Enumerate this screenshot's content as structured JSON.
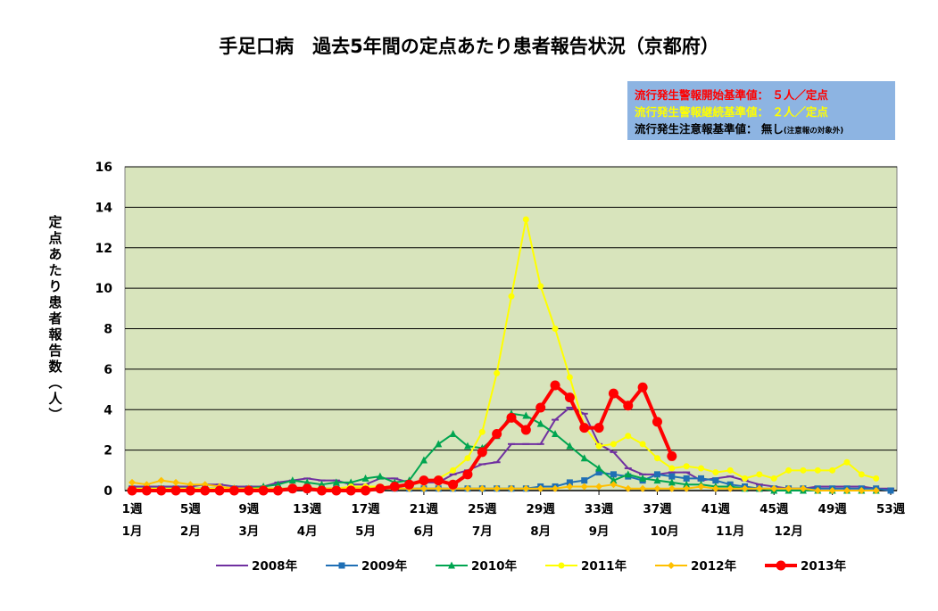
{
  "chart_data": {
    "type": "line",
    "title": "手足口病　過去5年間の定点あたり患者報告状況（京都府）",
    "ylabel": "定点あたり患者報告数（人）",
    "xlabel": "",
    "ylim": [
      0,
      16
    ],
    "yticks": [
      "0",
      "2",
      "4",
      "6",
      "8",
      "10",
      "12",
      "14",
      "16"
    ],
    "xlim": [
      1,
      53
    ],
    "week_ticks": [
      {
        "week": 1,
        "label": "1週"
      },
      {
        "week": 5,
        "label": "5週"
      },
      {
        "week": 9,
        "label": "9週"
      },
      {
        "week": 13,
        "label": "13週"
      },
      {
        "week": 17,
        "label": "17週"
      },
      {
        "week": 21,
        "label": "21週"
      },
      {
        "week": 25,
        "label": "25週"
      },
      {
        "week": 29,
        "label": "29週"
      },
      {
        "week": 33,
        "label": "33週"
      },
      {
        "week": 37,
        "label": "37週"
      },
      {
        "week": 41,
        "label": "41週"
      },
      {
        "week": 45,
        "label": "45週"
      },
      {
        "week": 49,
        "label": "49週"
      },
      {
        "week": 53,
        "label": "53週"
      }
    ],
    "month_ticks": [
      {
        "week": 1,
        "label": "1月"
      },
      {
        "week": 5,
        "label": "2月"
      },
      {
        "week": 9,
        "label": "3月"
      },
      {
        "week": 13,
        "label": "4月"
      },
      {
        "week": 17,
        "label": "5月"
      },
      {
        "week": 21,
        "label": "6月"
      },
      {
        "week": 25,
        "label": "7月"
      },
      {
        "week": 29,
        "label": "8月"
      },
      {
        "week": 33,
        "label": "9月"
      },
      {
        "week": 37.5,
        "label": "10月"
      },
      {
        "week": 42,
        "label": "11月"
      },
      {
        "week": 46,
        "label": "12月"
      }
    ],
    "grid": true,
    "legend": "bottom",
    "series": [
      {
        "name": "2008年",
        "color": "#7030a0",
        "marker": "dash",
        "width": 2,
        "start": 1,
        "values": [
          0.2,
          0.2,
          0.2,
          0.2,
          0.2,
          0.3,
          0.3,
          0.2,
          0.2,
          0.2,
          0.4,
          0.5,
          0.6,
          0.5,
          0.5,
          0.3,
          0.3,
          0.6,
          0.6,
          0.4,
          0.4,
          0.4,
          0.8,
          1.0,
          1.3,
          1.4,
          2.3,
          2.3,
          2.3,
          3.5,
          4.1,
          3.8,
          2.3,
          1.9,
          1.1,
          0.8,
          0.8,
          0.9,
          0.9,
          0.5,
          0.6,
          0.7,
          0.5,
          0.3,
          0.2,
          0.1,
          0.1,
          0.2,
          0.2,
          0.2,
          0.2,
          0.1,
          0.1
        ]
      },
      {
        "name": "2009年",
        "color": "#1f6fb5",
        "marker": "square",
        "width": 2,
        "start": 1,
        "values": [
          0.1,
          0.1,
          0.1,
          0.1,
          0.1,
          0.1,
          0.1,
          0.1,
          0.1,
          0.1,
          0.1,
          0.1,
          0.1,
          0.1,
          0.1,
          0.1,
          0.1,
          0.1,
          0.1,
          0.1,
          0.1,
          0.1,
          0.1,
          0.1,
          0.1,
          0.1,
          0.1,
          0.1,
          0.2,
          0.2,
          0.4,
          0.5,
          0.9,
          0.8,
          0.7,
          0.5,
          0.8,
          0.7,
          0.6,
          0.6,
          0.5,
          0.3,
          0.2,
          0.1,
          0.1,
          0.1,
          0.1,
          0.1,
          0.1,
          0.1,
          0.1,
          0.1,
          0.0
        ]
      },
      {
        "name": "2010年",
        "color": "#00a550",
        "marker": "triangle",
        "width": 2,
        "start": 1,
        "values": [
          0.0,
          0.1,
          0.1,
          0.1,
          0.1,
          0.1,
          0.1,
          0.1,
          0.1,
          0.2,
          0.3,
          0.5,
          0.4,
          0.3,
          0.4,
          0.4,
          0.6,
          0.7,
          0.4,
          0.5,
          1.5,
          2.3,
          2.8,
          2.2,
          2.1,
          2.7,
          3.8,
          3.7,
          3.3,
          2.8,
          2.2,
          1.6,
          1.1,
          0.5,
          0.8,
          0.6,
          0.5,
          0.4,
          0.3,
          0.3,
          0.2,
          0.2,
          0.1,
          0.1,
          0.0,
          0.0,
          0.0,
          0.0,
          0.0,
          0.0,
          0.0,
          0.0
        ]
      },
      {
        "name": "2011年",
        "color": "#ffff00",
        "marker": "circle",
        "width": 2,
        "start": 1,
        "values": [
          0.1,
          0.1,
          0.1,
          0.1,
          0.1,
          0.1,
          0.1,
          0.1,
          0.1,
          0.1,
          0.1,
          0.1,
          0.1,
          0.1,
          0.1,
          0.2,
          0.2,
          0.2,
          0.2,
          0.3,
          0.4,
          0.6,
          1.0,
          1.6,
          2.9,
          5.8,
          9.6,
          13.4,
          10.1,
          8.0,
          5.6,
          3.2,
          2.2,
          2.3,
          2.7,
          2.3,
          1.6,
          1.1,
          1.2,
          1.1,
          0.9,
          1.0,
          0.6,
          0.8,
          0.6,
          1.0,
          1.0,
          1.0,
          1.0,
          1.4,
          0.8,
          0.6
        ]
      },
      {
        "name": "2012年",
        "color": "#ffc000",
        "marker": "diamond",
        "width": 2,
        "start": 1,
        "values": [
          0.4,
          0.3,
          0.5,
          0.4,
          0.3,
          0.3,
          0.2,
          0.1,
          0.1,
          0.1,
          0.1,
          0.1,
          0.1,
          0.1,
          0.1,
          0.1,
          0.1,
          0.1,
          0.1,
          0.1,
          0.1,
          0.1,
          0.1,
          0.1,
          0.1,
          0.1,
          0.1,
          0.1,
          0.1,
          0.1,
          0.2,
          0.2,
          0.2,
          0.3,
          0.1,
          0.1,
          0.1,
          0.1,
          0.1,
          0.2,
          0.1,
          0.1,
          0.1,
          0.1,
          0.1,
          0.1,
          0.1,
          0.0,
          0.0,
          0.0,
          0.0,
          0.0
        ]
      },
      {
        "name": "2013年",
        "color": "#ff0000",
        "marker": "circle",
        "width": 4,
        "start": 1,
        "values": [
          0.0,
          0.0,
          0.0,
          0.0,
          0.0,
          0.0,
          0.0,
          0.0,
          0.0,
          0.0,
          0.0,
          0.1,
          0.1,
          0.0,
          0.0,
          0.0,
          0.0,
          0.1,
          0.2,
          0.3,
          0.5,
          0.5,
          0.3,
          0.8,
          1.9,
          2.8,
          3.6,
          3.0,
          4.1,
          5.2,
          4.6,
          3.1,
          3.1,
          4.8,
          4.2,
          5.1,
          3.4,
          1.7
        ]
      }
    ]
  },
  "thresholds": [
    {
      "label": "流行発生警報開始基準値：",
      "value": "５人／定点",
      "note": "",
      "color": "#ff0000"
    },
    {
      "label": "流行発生警報継続基準値：",
      "value": "２人／定点",
      "note": "",
      "color": "#ffff00"
    },
    {
      "label": "流行発生注意報基準値：",
      "value": "無し",
      "note": "(注意報の対象外)",
      "color": "#000000"
    }
  ],
  "colors": {
    "plot_bg": "#d8e4bc",
    "box_bg": "#8db4e2"
  }
}
